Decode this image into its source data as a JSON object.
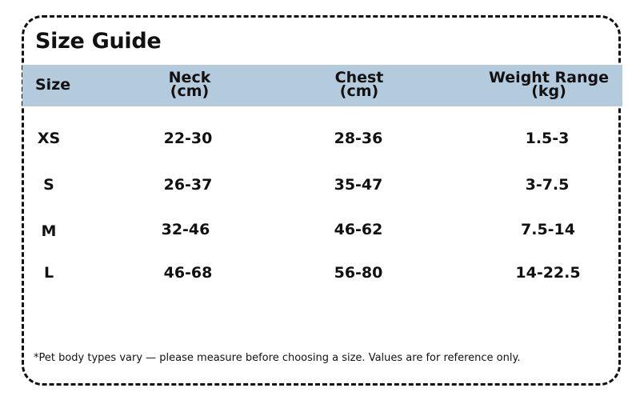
{
  "title": "Size Guide",
  "columns": {
    "size": "Size",
    "neck": {
      "label": "Neck",
      "unit": "(cm)"
    },
    "chest": {
      "label": "Chest",
      "unit": "(cm)"
    },
    "weight": {
      "label": "Weight Range",
      "unit": "(kg)"
    }
  },
  "rows": [
    {
      "size": "XS",
      "neck": "22-30",
      "chest": "28-36",
      "weight": "1.5-3"
    },
    {
      "size": "S",
      "neck": "26-37",
      "chest": "35-47",
      "weight": "3-7.5"
    },
    {
      "size": "M",
      "neck": "32-46",
      "chest": "46-62",
      "weight": "7.5-14"
    },
    {
      "size": "L",
      "neck": "46-68",
      "chest": "56-80",
      "weight": "14-22.5"
    }
  ],
  "footnote": "*Pet body types vary — please measure before choosing a size. Values are for reference only.",
  "colors": {
    "header_band": "#b4cadd",
    "text": "#111111",
    "border": "#111111"
  }
}
